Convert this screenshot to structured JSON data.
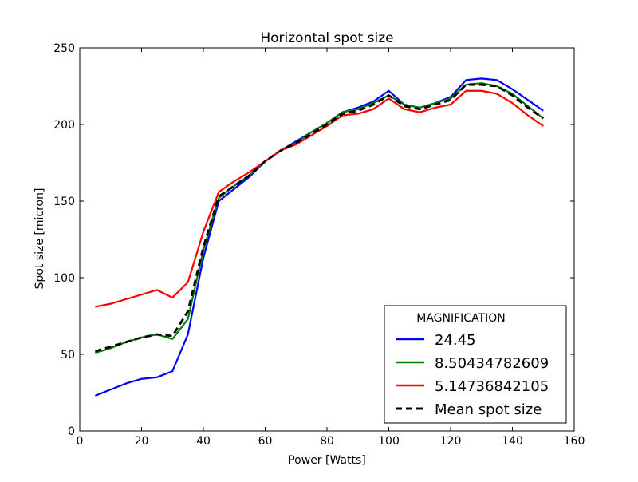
{
  "chart_data": {
    "type": "line",
    "title": "Horizontal spot size",
    "xlabel": "Power [Watts]",
    "ylabel": "Spot size [micron]",
    "xlim": [
      0,
      160
    ],
    "ylim": [
      0,
      250
    ],
    "xticks": [
      "0",
      "20",
      "40",
      "60",
      "80",
      "100",
      "120",
      "140",
      "160"
    ],
    "yticks": [
      "0",
      "50",
      "100",
      "150",
      "200",
      "250"
    ],
    "grid": false,
    "legend": {
      "title": "MAGNIFICATION",
      "location": "lower-right"
    },
    "x": [
      5,
      10,
      15,
      20,
      25,
      30,
      35,
      40,
      45,
      50,
      55,
      60,
      65,
      70,
      75,
      80,
      85,
      90,
      95,
      100,
      105,
      110,
      115,
      120,
      125,
      130,
      135,
      140,
      145,
      150
    ],
    "series": [
      {
        "name": "24.45",
        "color": "#0000ff",
        "style": "solid",
        "values": [
          23,
          27,
          31,
          34,
          35,
          39,
          63,
          113,
          150,
          158,
          166,
          176,
          183,
          189,
          195,
          201,
          208,
          211,
          215,
          222,
          213,
          211,
          214,
          218,
          229,
          230,
          229,
          223,
          216,
          209
        ]
      },
      {
        "name": "8.50434782609",
        "color": "#008000",
        "style": "solid",
        "values": [
          51,
          54,
          58,
          61,
          63,
          60,
          73,
          118,
          152,
          160,
          167,
          176,
          183,
          188,
          195,
          201,
          208,
          210,
          214,
          219,
          213,
          211,
          214,
          217,
          226,
          227,
          225,
          220,
          212,
          204
        ]
      },
      {
        "name": "5.14736842105",
        "color": "#ff0000",
        "style": "solid",
        "values": [
          81,
          83,
          86,
          89,
          92,
          87,
          97,
          130,
          156,
          163,
          169,
          176,
          183,
          187,
          193,
          199,
          206,
          207,
          210,
          217,
          210,
          208,
          211,
          213,
          222,
          222,
          220,
          214,
          206,
          199
        ]
      },
      {
        "name": "Mean spot size",
        "color": "#000000",
        "style": "dashed",
        "values": [
          52,
          55,
          58,
          61,
          63,
          62,
          78,
          120,
          153,
          160,
          167,
          176,
          183,
          188,
          194,
          200,
          207,
          209,
          213,
          219,
          212,
          210,
          213,
          216,
          226,
          226,
          225,
          219,
          211,
          204
        ]
      }
    ]
  }
}
